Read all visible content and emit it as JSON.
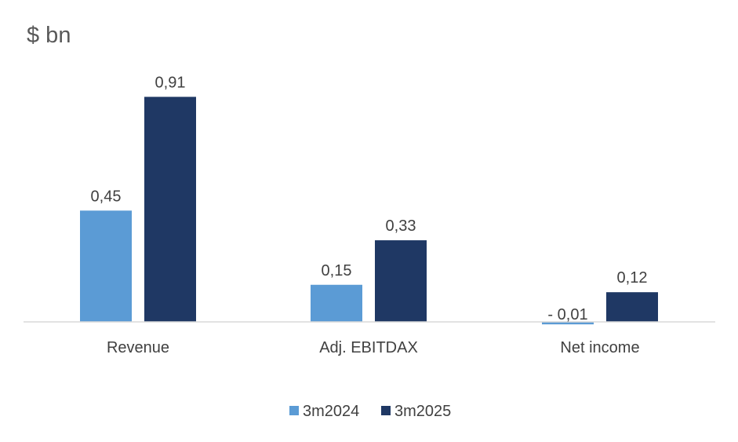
{
  "chart_data": {
    "type": "bar",
    "unit_label": "$ bn",
    "categories": [
      "Revenue",
      "Adj. EBITDAX",
      "Net income"
    ],
    "series": [
      {
        "name": "3m2024",
        "color": "#5b9bd5",
        "values": [
          0.45,
          0.15,
          -0.01
        ],
        "labels": [
          "0,45",
          "0,15",
          "- 0,01"
        ]
      },
      {
        "name": "3m2025",
        "color": "#1f3864",
        "values": [
          0.91,
          0.33,
          0.12
        ],
        "labels": [
          "0,91",
          "0,33",
          "0,12"
        ]
      }
    ],
    "legend_position": "bottom",
    "grid": false,
    "axis_color": "#d9d9d9"
  }
}
